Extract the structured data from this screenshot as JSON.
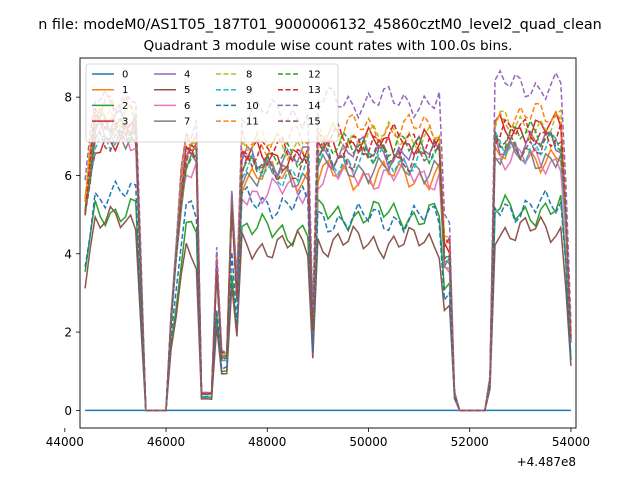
{
  "figure": {
    "suptitle": "n file: modeM0/AS1T05_187T01_9000006132_45860cztM0_level2_quad_clean",
    "title": "Quadrant 3 module wise count rates with 100.0s bins."
  },
  "chart_data": {
    "type": "line",
    "title": "Quadrant 3 module wise count rates with 100.0s bins.",
    "xlabel": "",
    "ylabel": "",
    "x_offset_label": "+4.487e8",
    "xlim": [
      44300,
      54100
    ],
    "ylim": [
      -0.45,
      9.0
    ],
    "xticks": [
      44000,
      46000,
      48000,
      50000,
      52000,
      54000
    ],
    "xtick_labels": [
      "44000",
      "46000",
      "48000",
      "50000",
      "52000",
      "54000"
    ],
    "yticks": [
      0,
      2,
      4,
      6,
      8
    ],
    "ytick_labels": [
      "0",
      "2",
      "4",
      "6",
      "8"
    ],
    "grid": false,
    "legend_position": "top-left",
    "legend_columns": 4,
    "segments": [
      [
        44400,
        45600
      ],
      [
        46100,
        46800
      ],
      [
        46800,
        48850
      ],
      [
        48850,
        51700
      ],
      [
        51700,
        52400
      ],
      [
        52400,
        54000
      ]
    ],
    "gap_zero_intervals": [
      [
        45600,
        46100
      ],
      [
        51700,
        52400
      ]
    ],
    "series": [
      {
        "name": "0",
        "color": "#1f77b4",
        "dash": "solid",
        "constant": 0
      },
      {
        "name": "1",
        "color": "#ff7f0e",
        "dash": "solid",
        "levels": [
          7.4,
          6.8,
          6.0,
          6.0,
          6.5
        ]
      },
      {
        "name": "2",
        "color": "#2ca02c",
        "dash": "solid",
        "levels": [
          5.1,
          4.6,
          4.6,
          5.0,
          5.1
        ]
      },
      {
        "name": "3",
        "color": "#d62728",
        "dash": "solid",
        "levels": [
          6.9,
          6.6,
          6.5,
          6.8,
          7.2
        ]
      },
      {
        "name": "4",
        "color": "#9467bd",
        "dash": "solid",
        "levels": [
          7.3,
          6.5,
          6.4,
          6.6,
          6.8
        ]
      },
      {
        "name": "5",
        "color": "#8c564b",
        "dash": "solid",
        "levels": [
          4.8,
          4.0,
          4.2,
          4.3,
          4.6
        ]
      },
      {
        "name": "6",
        "color": "#e377c2",
        "dash": "solid",
        "levels": [
          7.0,
          6.3,
          5.6,
          6.0,
          6.4
        ]
      },
      {
        "name": "7",
        "color": "#7f7f7f",
        "dash": "solid",
        "levels": [
          7.1,
          6.4,
          6.0,
          6.2,
          6.5
        ]
      },
      {
        "name": "8",
        "color": "#bcbd22",
        "dash": "dashed",
        "levels": [
          7.6,
          6.9,
          6.8,
          7.0,
          7.3
        ]
      },
      {
        "name": "9",
        "color": "#17becf",
        "dash": "dashed",
        "levels": [
          7.0,
          6.3,
          6.1,
          6.4,
          6.7
        ]
      },
      {
        "name": "10",
        "color": "#1f77b4",
        "dash": "dashed",
        "levels": [
          5.5,
          5.0,
          5.3,
          4.9,
          5.2
        ]
      },
      {
        "name": "11",
        "color": "#ff7f0e",
        "dash": "dashed",
        "levels": [
          7.7,
          6.9,
          6.9,
          7.2,
          7.5
        ]
      },
      {
        "name": "12",
        "color": "#2ca02c",
        "dash": "dashed",
        "levels": [
          7.2,
          6.5,
          6.4,
          6.7,
          7.0
        ]
      },
      {
        "name": "13",
        "color": "#d62728",
        "dash": "dashed",
        "levels": [
          7.3,
          6.7,
          6.6,
          6.9,
          7.1
        ]
      },
      {
        "name": "14",
        "color": "#9467bd",
        "dash": "dashed",
        "levels": [
          8.0,
          7.2,
          7.6,
          7.9,
          8.3
        ]
      },
      {
        "name": "15",
        "color": "#8c564b",
        "dash": "dashed",
        "levels": [
          7.0,
          6.4,
          6.2,
          6.5,
          6.8
        ]
      }
    ]
  }
}
